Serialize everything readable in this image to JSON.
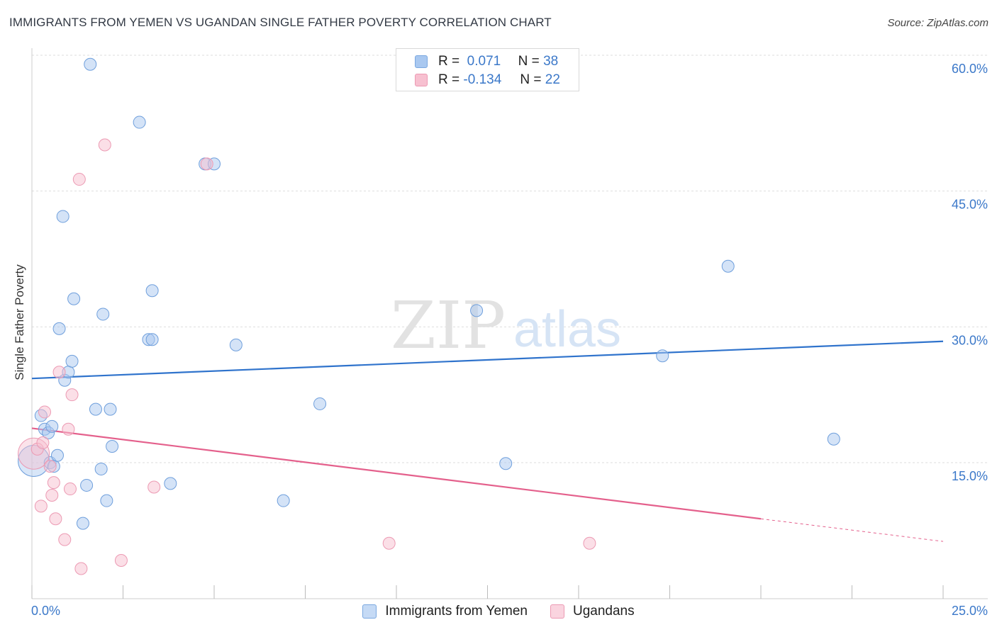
{
  "title": "IMMIGRANTS FROM YEMEN VS UGANDAN SINGLE FATHER POVERTY CORRELATION CHART",
  "source": "Source: ZipAtlas.com",
  "watermark": {
    "zip": "ZIP",
    "atlas": "atlas"
  },
  "legend": {
    "rows": [
      {
        "r_label": "R =",
        "r_value": "0.071",
        "n_label": "N =",
        "n_value": "38",
        "color": "#a9c8f0",
        "border": "#7aa8e0"
      },
      {
        "r_label": "R =",
        "r_value": "-0.134",
        "n_label": "N =",
        "n_value": "22",
        "color": "#f7c0d0",
        "border": "#ec9ab3"
      }
    ]
  },
  "bottom_legend": {
    "series1": "Immigrants from Yemen",
    "series2": "Ugandans"
  },
  "x_axis": {
    "min_label": "0.0%",
    "max_label": "25.0%"
  },
  "chart_data": {
    "type": "scatter",
    "title": "IMMIGRANTS FROM YEMEN VS UGANDAN SINGLE FATHER POVERTY CORRELATION CHART",
    "xlabel": "",
    "ylabel": "Single Father Poverty",
    "xlim": [
      0,
      25
    ],
    "ylim": [
      0,
      61
    ],
    "y_ticks": [
      {
        "value": 15,
        "label": "15.0%"
      },
      {
        "value": 30,
        "label": "30.0%"
      },
      {
        "value": 45,
        "label": "45.0%"
      },
      {
        "value": 60,
        "label": "60.0%"
      }
    ],
    "grid": true,
    "legend_position": "top-center",
    "series": [
      {
        "name": "Immigrants from Yemen",
        "color": "#a9c8f0",
        "edge": "#6f9fdc",
        "line_color": "#2f73cc",
        "trend": {
          "x": [
            0,
            25
          ],
          "y": [
            24.3,
            28.4
          ]
        },
        "points": [
          {
            "x": 0.05,
            "y": 15.2,
            "big": true
          },
          {
            "x": 0.25,
            "y": 20.2
          },
          {
            "x": 0.35,
            "y": 18.7
          },
          {
            "x": 0.45,
            "y": 18.3
          },
          {
            "x": 0.5,
            "y": 15.0
          },
          {
            "x": 0.6,
            "y": 14.6
          },
          {
            "x": 0.55,
            "y": 19.0
          },
          {
            "x": 0.7,
            "y": 15.8
          },
          {
            "x": 0.75,
            "y": 29.8
          },
          {
            "x": 0.85,
            "y": 42.2
          },
          {
            "x": 0.9,
            "y": 24.1
          },
          {
            "x": 1.0,
            "y": 25.0
          },
          {
            "x": 1.1,
            "y": 26.2
          },
          {
            "x": 1.15,
            "y": 33.1
          },
          {
            "x": 1.4,
            "y": 8.3
          },
          {
            "x": 1.5,
            "y": 12.5
          },
          {
            "x": 1.6,
            "y": 59.0
          },
          {
            "x": 1.75,
            "y": 20.9
          },
          {
            "x": 1.9,
            "y": 14.3
          },
          {
            "x": 1.95,
            "y": 31.4
          },
          {
            "x": 2.05,
            "y": 10.8
          },
          {
            "x": 2.15,
            "y": 20.9
          },
          {
            "x": 2.2,
            "y": 16.8
          },
          {
            "x": 2.95,
            "y": 52.6
          },
          {
            "x": 3.2,
            "y": 28.6
          },
          {
            "x": 3.3,
            "y": 28.6
          },
          {
            "x": 3.3,
            "y": 34.0
          },
          {
            "x": 3.8,
            "y": 12.7
          },
          {
            "x": 4.75,
            "y": 48.0
          },
          {
            "x": 5.0,
            "y": 48.0
          },
          {
            "x": 5.6,
            "y": 28.0
          },
          {
            "x": 6.9,
            "y": 10.8
          },
          {
            "x": 7.9,
            "y": 21.5
          },
          {
            "x": 12.2,
            "y": 31.8
          },
          {
            "x": 13.0,
            "y": 14.9
          },
          {
            "x": 17.3,
            "y": 26.8
          },
          {
            "x": 19.1,
            "y": 36.7
          },
          {
            "x": 22.0,
            "y": 17.6
          }
        ]
      },
      {
        "name": "Ugandans",
        "color": "#f7c0d0",
        "edge": "#ec9ab3",
        "line_color": "#e4608c",
        "trend": {
          "x": [
            0,
            20
          ],
          "y": [
            18.8,
            8.8
          ]
        },
        "trend_dashed": {
          "x": [
            20,
            25
          ],
          "y": [
            8.8,
            6.3
          ]
        },
        "points": [
          {
            "x": 0.05,
            "y": 16.0,
            "big": true
          },
          {
            "x": 0.15,
            "y": 16.5
          },
          {
            "x": 0.25,
            "y": 10.2
          },
          {
            "x": 0.3,
            "y": 17.2
          },
          {
            "x": 0.35,
            "y": 20.6
          },
          {
            "x": 0.5,
            "y": 14.6
          },
          {
            "x": 0.55,
            "y": 11.4
          },
          {
            "x": 0.6,
            "y": 12.8
          },
          {
            "x": 0.65,
            "y": 8.8
          },
          {
            "x": 0.75,
            "y": 25.0
          },
          {
            "x": 0.9,
            "y": 6.5
          },
          {
            "x": 1.0,
            "y": 18.7
          },
          {
            "x": 1.05,
            "y": 12.1
          },
          {
            "x": 1.1,
            "y": 22.5
          },
          {
            "x": 1.35,
            "y": 3.3
          },
          {
            "x": 1.3,
            "y": 46.3
          },
          {
            "x": 2.0,
            "y": 50.1
          },
          {
            "x": 2.45,
            "y": 4.2
          },
          {
            "x": 3.35,
            "y": 12.3
          },
          {
            "x": 4.8,
            "y": 48.0
          },
          {
            "x": 9.8,
            "y": 6.1
          },
          {
            "x": 15.3,
            "y": 6.1
          }
        ]
      }
    ]
  }
}
